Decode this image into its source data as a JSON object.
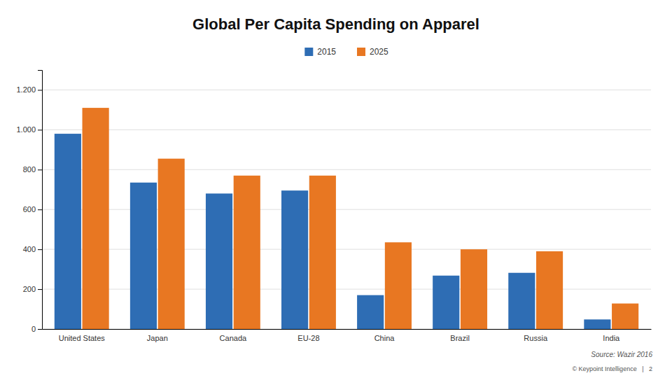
{
  "chart_data": {
    "type": "bar",
    "title": "Global Per Capita Spending on Apparel",
    "categories": [
      "United States",
      "Japan",
      "Canada",
      "EU-28",
      "China",
      "Brazil",
      "Russia",
      "India"
    ],
    "series": [
      {
        "name": "2015",
        "color": "#2e6db4",
        "values": [
          980,
          735,
          680,
          695,
          170,
          268,
          282,
          48
        ]
      },
      {
        "name": "2025",
        "color": "#e87722",
        "values": [
          1110,
          855,
          770,
          770,
          435,
          400,
          390,
          128
        ]
      }
    ],
    "ylim": [
      0,
      1300
    ],
    "yticks": [
      0,
      200,
      400,
      600,
      800,
      {
        "value": 1000,
        "label": "1.000"
      },
      {
        "value": 1200,
        "label": "1.200"
      }
    ],
    "grid": true,
    "legend": "top",
    "annotations": [
      "Source: Wazir 2016",
      "© Keypoint Intelligence   |   2"
    ]
  }
}
